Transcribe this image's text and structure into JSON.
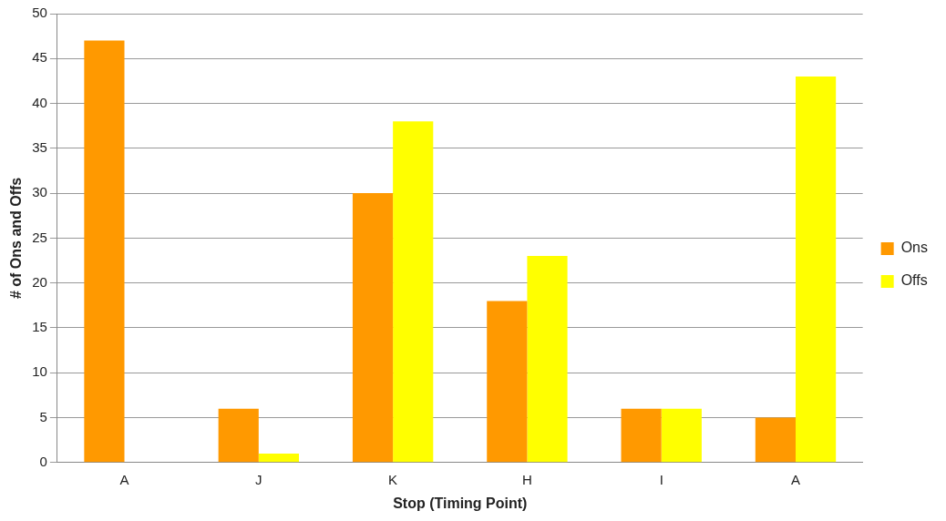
{
  "chart_data": {
    "type": "bar",
    "xlabel": "Stop (Timing Point)",
    "ylabel": "# of Ons and Offs",
    "categories": [
      "A",
      "J",
      "K",
      "H",
      "I",
      "A"
    ],
    "series": [
      {
        "name": "Ons",
        "color": "#ff9900",
        "values": [
          47,
          6,
          30,
          18,
          6,
          5
        ]
      },
      {
        "name": "Offs",
        "color": "#ffff00",
        "values": [
          0,
          1,
          38,
          23,
          6,
          43
        ]
      }
    ],
    "ylim": [
      0,
      50
    ],
    "yticks": [
      0,
      5,
      10,
      15,
      20,
      25,
      30,
      35,
      40,
      45,
      50
    ],
    "grid": "y",
    "legend": "right"
  }
}
